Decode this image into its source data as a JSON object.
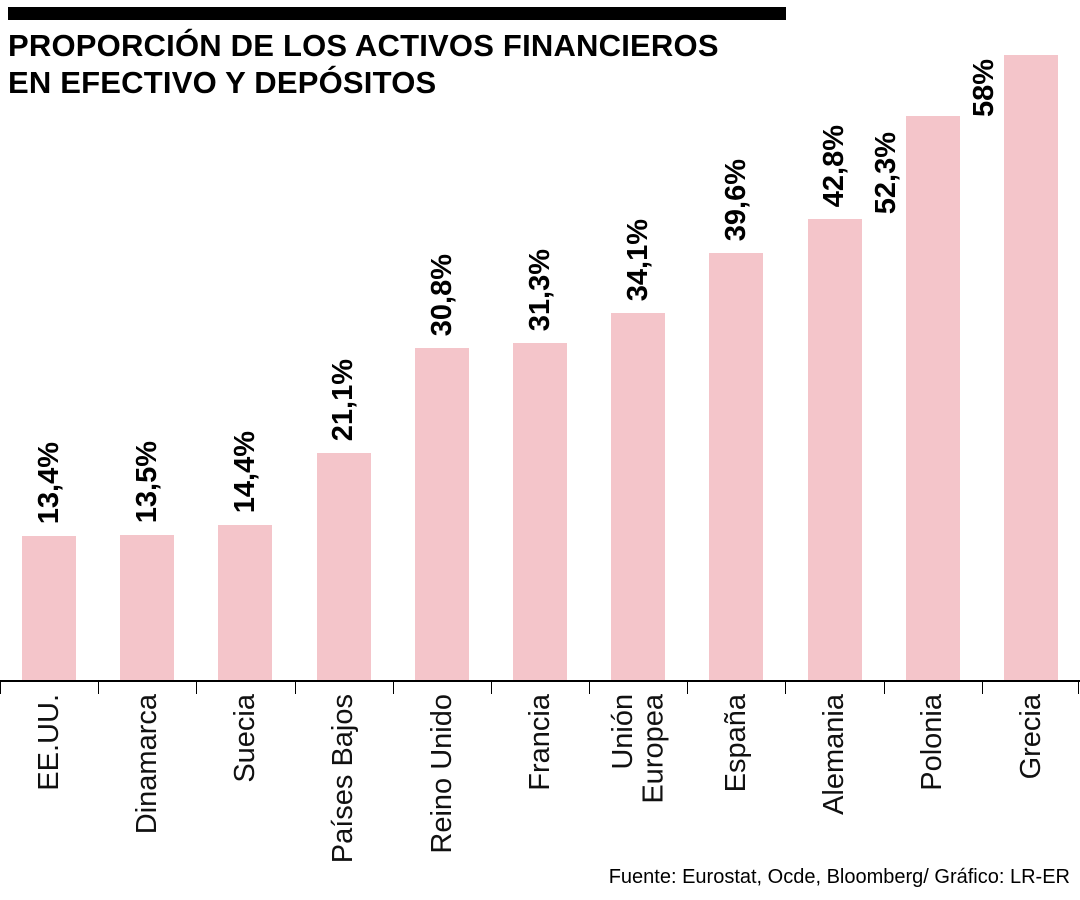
{
  "header": {
    "title": "PROPORCIÓN DE LOS ACTIVOS FINANCIEROS\nEN EFECTIVO Y DEPÓSITOS"
  },
  "footer": {
    "source": "Fuente: Eurostat, Ocde, Bloomberg/ Gráfico: LR-ER"
  },
  "colors": {
    "bar": "#f4c5ca",
    "axis": "#000000",
    "text": "#000000"
  },
  "chart_data": {
    "type": "bar",
    "title": "PROPORCIÓN DE LOS ACTIVOS FINANCIEROS EN EFECTIVO Y DEPÓSITOS",
    "categories": [
      "EE.UU.",
      "Dinamarca",
      "Suecia",
      "Países Bajos",
      "Reino Unido",
      "Francia",
      "Unión\nEuropea",
      "España",
      "Alemania",
      "Polonia",
      "Grecia"
    ],
    "values": [
      13.4,
      13.5,
      14.4,
      21.1,
      30.8,
      31.3,
      34.1,
      39.6,
      42.8,
      52.3,
      58
    ],
    "value_labels": [
      "13,4%",
      "13,5%",
      "14,4%",
      "21,1%",
      "30,8%",
      "31,3%",
      "34,1%",
      "39,6%",
      "42,8%",
      "52,3%",
      "58%"
    ],
    "xlabel": "",
    "ylabel": "",
    "ylim": [
      0,
      60
    ],
    "grid": false,
    "legend": false,
    "bar_color": "#f4c5ca",
    "orientation": "vertical",
    "value_label_rotation": 90,
    "category_label_rotation": 90
  }
}
